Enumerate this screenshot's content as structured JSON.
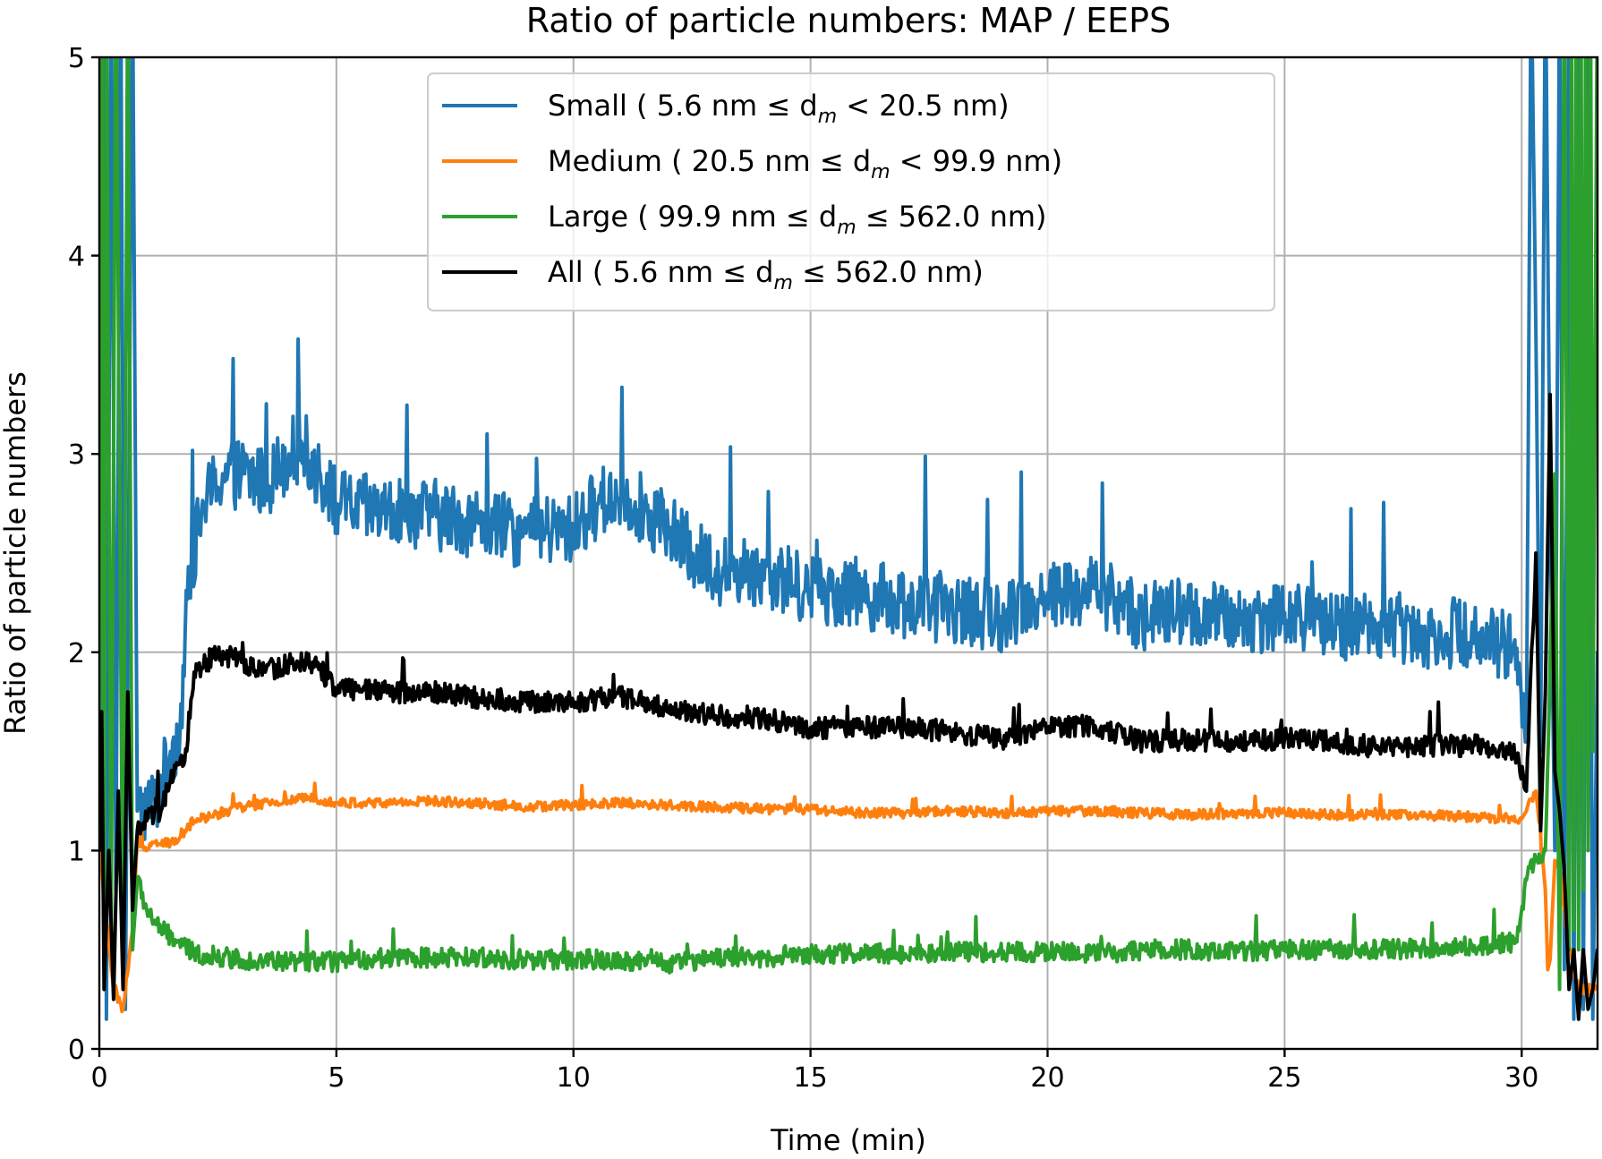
{
  "chart_data": {
    "type": "line",
    "title": "Ratio of particle numbers: MAP / EEPS",
    "xlabel": "Time (min)",
    "ylabel": "Ratio of particle numbers",
    "xlim": [
      0,
      31.6
    ],
    "ylim": [
      0,
      5
    ],
    "xticks": [
      0,
      5,
      10,
      15,
      20,
      25,
      30
    ],
    "yticks": [
      0,
      1,
      2,
      3,
      4,
      5
    ],
    "grid": true,
    "legend_position": "upper center",
    "series": [
      {
        "name": "Small",
        "legend": {
          "prefix": "Small ( 5.6 nm ",
          "op1": "≤",
          "d": " d",
          "sub": "m",
          "op2": " <",
          "suffix": "  20.5 nm)"
        },
        "color": "#1f77b4",
        "noise": 0.18,
        "points": [
          [
            0,
            1.0
          ],
          [
            0.1,
            5.5
          ],
          [
            0.15,
            0.15
          ],
          [
            0.25,
            5.5
          ],
          [
            0.35,
            0.8
          ],
          [
            0.45,
            5.5
          ],
          [
            0.55,
            0.2
          ],
          [
            0.7,
            5.5
          ],
          [
            0.8,
            1.2
          ],
          [
            1.0,
            1.22
          ],
          [
            1.2,
            1.25
          ],
          [
            1.5,
            1.5
          ],
          [
            1.7,
            1.6
          ],
          [
            1.9,
            2.4
          ],
          [
            2.2,
            2.75
          ],
          [
            2.6,
            2.9
          ],
          [
            3.0,
            2.9
          ],
          [
            3.5,
            2.85
          ],
          [
            4.0,
            3.0
          ],
          [
            4.3,
            3.05
          ],
          [
            4.6,
            2.9
          ],
          [
            5.0,
            2.75
          ],
          [
            6.0,
            2.7
          ],
          [
            7.0,
            2.7
          ],
          [
            8.0,
            2.65
          ],
          [
            9.0,
            2.6
          ],
          [
            10.0,
            2.62
          ],
          [
            10.5,
            2.75
          ],
          [
            11.0,
            2.8
          ],
          [
            11.5,
            2.72
          ],
          [
            12.0,
            2.62
          ],
          [
            12.5,
            2.5
          ],
          [
            13.0,
            2.42
          ],
          [
            14.0,
            2.4
          ],
          [
            15.0,
            2.32
          ],
          [
            16.0,
            2.3
          ],
          [
            17.0,
            2.25
          ],
          [
            18.0,
            2.22
          ],
          [
            19.0,
            2.18
          ],
          [
            20.0,
            2.3
          ],
          [
            20.5,
            2.3
          ],
          [
            21.0,
            2.32
          ],
          [
            22.0,
            2.18
          ],
          [
            23.0,
            2.2
          ],
          [
            24.0,
            2.15
          ],
          [
            25.0,
            2.2
          ],
          [
            26.0,
            2.12
          ],
          [
            27.0,
            2.15
          ],
          [
            28.0,
            2.1
          ],
          [
            29.0,
            2.1
          ],
          [
            29.9,
            2.02
          ],
          [
            30.1,
            1.55
          ],
          [
            30.2,
            5.5
          ],
          [
            30.4,
            1.5
          ],
          [
            30.5,
            5.5
          ],
          [
            30.6,
            2.7
          ],
          [
            30.7,
            1.0
          ],
          [
            30.8,
            5.5
          ],
          [
            30.9,
            0.4
          ],
          [
            31.0,
            5.5
          ],
          [
            31.1,
            0.15
          ],
          [
            31.2,
            5.5
          ],
          [
            31.3,
            0.2
          ],
          [
            31.4,
            5.5
          ],
          [
            31.5,
            0.15
          ],
          [
            31.6,
            2.0
          ]
        ]
      },
      {
        "name": "Medium",
        "legend": {
          "prefix": "Medium ( 20.5 nm ",
          "op1": "≤",
          "d": " d",
          "sub": "m",
          "op2": " <",
          "suffix": "   99.9 nm)"
        },
        "color": "#ff7f0e",
        "noise": 0.025,
        "points": [
          [
            0,
            1.0
          ],
          [
            0.3,
            0.3
          ],
          [
            0.5,
            0.2
          ],
          [
            0.7,
            0.6
          ],
          [
            0.8,
            1.05
          ],
          [
            1.0,
            1.0
          ],
          [
            1.2,
            1.05
          ],
          [
            1.5,
            1.03
          ],
          [
            1.8,
            1.1
          ],
          [
            2.0,
            1.15
          ],
          [
            3.0,
            1.22
          ],
          [
            4.0,
            1.25
          ],
          [
            4.5,
            1.27
          ],
          [
            5.0,
            1.24
          ],
          [
            6.0,
            1.24
          ],
          [
            7.0,
            1.25
          ],
          [
            8.0,
            1.24
          ],
          [
            9.0,
            1.22
          ],
          [
            10.0,
            1.23
          ],
          [
            11.0,
            1.24
          ],
          [
            12.0,
            1.23
          ],
          [
            13.0,
            1.22
          ],
          [
            14.0,
            1.21
          ],
          [
            15.0,
            1.21
          ],
          [
            16.0,
            1.19
          ],
          [
            17.0,
            1.19
          ],
          [
            18.0,
            1.2
          ],
          [
            19.0,
            1.19
          ],
          [
            20.0,
            1.2
          ],
          [
            21.0,
            1.2
          ],
          [
            22.0,
            1.19
          ],
          [
            23.0,
            1.18
          ],
          [
            24.0,
            1.19
          ],
          [
            25.0,
            1.19
          ],
          [
            26.0,
            1.18
          ],
          [
            27.0,
            1.18
          ],
          [
            28.0,
            1.18
          ],
          [
            29.0,
            1.17
          ],
          [
            30.0,
            1.16
          ],
          [
            30.1,
            1.2
          ],
          [
            30.3,
            1.3
          ],
          [
            30.5,
            0.8
          ],
          [
            30.55,
            0.4
          ],
          [
            30.6,
            0.45
          ],
          [
            30.7,
            0.95
          ],
          [
            30.8,
            0.9
          ],
          [
            31.0,
            0.5
          ],
          [
            31.2,
            0.3
          ],
          [
            31.6,
            0.3
          ]
        ]
      },
      {
        "name": "Large",
        "legend": {
          "prefix": "Large ( 99.9 nm ",
          "op1": "≤",
          "d": " d",
          "sub": "m",
          "op2": " ≤",
          "suffix": "  562.0 nm)"
        },
        "color": "#2ca02c",
        "noise": 0.05,
        "points": [
          [
            0,
            1.5
          ],
          [
            0.05,
            5.5
          ],
          [
            0.1,
            0.5
          ],
          [
            0.15,
            5.5
          ],
          [
            0.25,
            0.6
          ],
          [
            0.35,
            5.5
          ],
          [
            0.5,
            0.4
          ],
          [
            0.6,
            5.5
          ],
          [
            0.7,
            0.5
          ],
          [
            0.8,
            0.85
          ],
          [
            1.0,
            0.7
          ],
          [
            1.3,
            0.6
          ],
          [
            1.6,
            0.55
          ],
          [
            2.0,
            0.48
          ],
          [
            3.0,
            0.45
          ],
          [
            4.0,
            0.44
          ],
          [
            5.0,
            0.44
          ],
          [
            6.0,
            0.46
          ],
          [
            7.0,
            0.46
          ],
          [
            8.0,
            0.46
          ],
          [
            9.0,
            0.45
          ],
          [
            10.0,
            0.45
          ],
          [
            11.0,
            0.45
          ],
          [
            12.0,
            0.43
          ],
          [
            13.0,
            0.46
          ],
          [
            14.0,
            0.46
          ],
          [
            15.0,
            0.48
          ],
          [
            16.0,
            0.48
          ],
          [
            17.0,
            0.48
          ],
          [
            18.0,
            0.49
          ],
          [
            19.0,
            0.49
          ],
          [
            20.0,
            0.49
          ],
          [
            21.0,
            0.48
          ],
          [
            22.0,
            0.5
          ],
          [
            23.0,
            0.5
          ],
          [
            24.0,
            0.49
          ],
          [
            25.0,
            0.5
          ],
          [
            26.0,
            0.5
          ],
          [
            27.0,
            0.5
          ],
          [
            28.0,
            0.51
          ],
          [
            29.0,
            0.52
          ],
          [
            29.9,
            0.54
          ],
          [
            30.1,
            0.85
          ],
          [
            30.3,
            0.95
          ],
          [
            30.5,
            1.0
          ],
          [
            30.7,
            2.9
          ],
          [
            30.8,
            0.3
          ],
          [
            30.9,
            5.5
          ],
          [
            31.0,
            0.5
          ],
          [
            31.05,
            5.5
          ],
          [
            31.1,
            0.6
          ],
          [
            31.15,
            5.5
          ],
          [
            31.2,
            0.5
          ],
          [
            31.25,
            5.5
          ],
          [
            31.3,
            0.8
          ],
          [
            31.35,
            5.5
          ],
          [
            31.4,
            1.0
          ],
          [
            31.45,
            5.5
          ],
          [
            31.5,
            1.5
          ],
          [
            31.6,
            5.5
          ]
        ]
      },
      {
        "name": "All",
        "legend": {
          "prefix": "All ( 5.6 nm ",
          "op1": "≤",
          "d": " d",
          "sub": "m",
          "op2": " ≤",
          "suffix": "  562.0 nm)"
        },
        "color": "#000000",
        "noise": 0.055,
        "points": [
          [
            0,
            1.0
          ],
          [
            0.05,
            1.7
          ],
          [
            0.1,
            0.3
          ],
          [
            0.2,
            1.0
          ],
          [
            0.3,
            0.25
          ],
          [
            0.4,
            1.3
          ],
          [
            0.5,
            0.3
          ],
          [
            0.6,
            1.8
          ],
          [
            0.7,
            0.7
          ],
          [
            0.8,
            1.1
          ],
          [
            1.0,
            1.15
          ],
          [
            1.3,
            1.2
          ],
          [
            1.5,
            1.35
          ],
          [
            1.8,
            1.45
          ],
          [
            2.0,
            1.9
          ],
          [
            2.5,
            2.0
          ],
          [
            3.0,
            1.95
          ],
          [
            3.5,
            1.9
          ],
          [
            4.0,
            1.95
          ],
          [
            4.5,
            1.95
          ],
          [
            5.0,
            1.82
          ],
          [
            6.0,
            1.8
          ],
          [
            7.0,
            1.8
          ],
          [
            8.0,
            1.77
          ],
          [
            9.0,
            1.75
          ],
          [
            10.0,
            1.75
          ],
          [
            11.0,
            1.78
          ],
          [
            12.0,
            1.72
          ],
          [
            13.0,
            1.68
          ],
          [
            14.0,
            1.67
          ],
          [
            15.0,
            1.62
          ],
          [
            16.0,
            1.62
          ],
          [
            17.0,
            1.62
          ],
          [
            18.0,
            1.6
          ],
          [
            19.0,
            1.56
          ],
          [
            20.0,
            1.62
          ],
          [
            21.0,
            1.63
          ],
          [
            22.0,
            1.55
          ],
          [
            23.0,
            1.56
          ],
          [
            24.0,
            1.54
          ],
          [
            25.0,
            1.57
          ],
          [
            26.0,
            1.55
          ],
          [
            27.0,
            1.52
          ],
          [
            28.0,
            1.53
          ],
          [
            29.0,
            1.53
          ],
          [
            29.9,
            1.48
          ],
          [
            30.1,
            1.3
          ],
          [
            30.3,
            2.5
          ],
          [
            30.4,
            1.1
          ],
          [
            30.5,
            1.8
          ],
          [
            30.6,
            3.3
          ],
          [
            30.7,
            1.4
          ],
          [
            30.8,
            1.2
          ],
          [
            30.9,
            0.9
          ],
          [
            31.0,
            0.3
          ],
          [
            31.1,
            0.5
          ],
          [
            31.2,
            0.15
          ],
          [
            31.3,
            0.5
          ],
          [
            31.4,
            0.2
          ],
          [
            31.5,
            0.3
          ],
          [
            31.6,
            0.5
          ]
        ]
      }
    ]
  }
}
